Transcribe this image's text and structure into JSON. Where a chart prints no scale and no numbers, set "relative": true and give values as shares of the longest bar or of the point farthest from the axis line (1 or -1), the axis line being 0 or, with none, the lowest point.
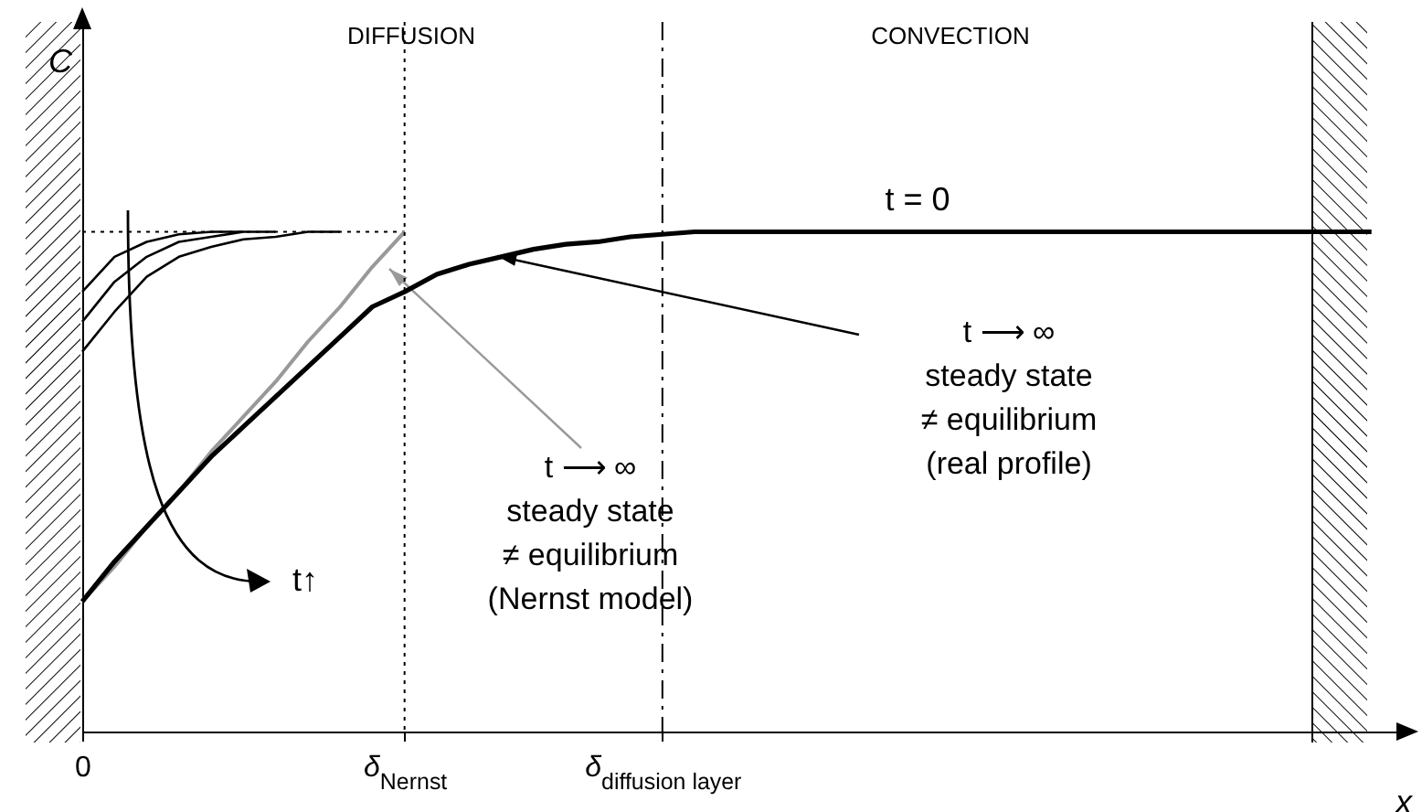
{
  "chart_data": {
    "type": "line",
    "relative": true,
    "xlabel": "x",
    "ylabel": "C",
    "categories": [
      "0",
      null,
      null,
      null,
      null,
      null,
      null,
      null,
      null,
      null,
      "δ$_{Nernst}$",
      null,
      null,
      null,
      null,
      null,
      null,
      null,
      "δ$_{diffusion layer}$",
      null,
      null,
      null,
      null,
      null,
      null,
      null,
      null,
      null,
      null,
      null,
      null,
      null,
      null,
      null,
      null,
      null,
      null,
      null,
      null,
      null,
      null,
      null
    ],
    "series": [
      {
        "color": "#000000",
        "values": [
          0.26,
          0.34,
          0.41,
          0.48,
          0.55,
          0.61,
          0.67,
          0.73,
          0.79,
          0.85,
          0.88,
          0.915,
          0.935,
          0.95,
          0.965,
          0.975,
          0.98,
          0.99,
          0.995,
          1,
          1,
          1,
          1,
          1,
          1,
          1,
          1,
          1,
          1,
          1,
          1,
          1,
          1,
          1,
          1,
          1,
          1,
          1,
          1,
          1,
          1,
          null
        ]
      },
      {
        "color": "#999999",
        "values": [
          0.26,
          0.33,
          0.41,
          0.48,
          0.56,
          0.63,
          0.7,
          0.78,
          0.85,
          0.93,
          1,
          null,
          null,
          null,
          null,
          null,
          null,
          null,
          null,
          null,
          null,
          null,
          null,
          null,
          null,
          null,
          null,
          null,
          null,
          null,
          null,
          null,
          null,
          null,
          null,
          null,
          null,
          null,
          null,
          null,
          null,
          null
        ]
      },
      {
        "color": "#000000",
        "values": [
          0.88,
          0.95,
          0.98,
          0.995,
          1,
          1,
          null,
          null,
          null,
          null,
          null,
          null,
          null,
          null,
          null,
          null,
          null,
          null,
          null,
          null,
          null,
          null,
          null,
          null,
          null,
          null,
          null,
          null,
          null,
          null,
          null,
          null,
          null,
          null,
          null,
          null,
          null,
          null,
          null,
          null,
          null,
          null
        ]
      },
      {
        "color": "#000000",
        "values": [
          0.82,
          0.9,
          0.95,
          0.98,
          0.99,
          1,
          1,
          null,
          null,
          null,
          null,
          null,
          null,
          null,
          null,
          null,
          null,
          null,
          null,
          null,
          null,
          null,
          null,
          null,
          null,
          null,
          null,
          null,
          null,
          null,
          null,
          null,
          null,
          null,
          null,
          null,
          null,
          null,
          null,
          null,
          null,
          null
        ]
      },
      {
        "color": "#000000",
        "values": [
          0.76,
          0.84,
          0.91,
          0.95,
          0.97,
          0.985,
          0.99,
          1,
          1,
          null,
          null,
          null,
          null,
          null,
          null,
          null,
          null,
          null,
          null,
          null,
          null,
          null,
          null,
          null,
          null,
          null,
          null,
          null,
          null,
          null,
          null,
          null,
          null,
          null,
          null,
          null,
          null,
          null,
          null,
          null,
          null,
          null
        ]
      },
      {
        "name": "t = 0",
        "color": "#000000",
        "line_style": "dotted",
        "values": [
          1,
          1,
          1,
          1,
          1,
          1,
          1,
          1,
          1,
          1,
          1,
          null,
          null,
          null,
          null,
          null,
          null,
          null,
          null,
          null,
          null,
          null,
          null,
          null,
          null,
          null,
          null,
          null,
          null,
          null,
          null,
          null,
          null,
          null,
          null,
          null,
          null,
          null,
          null,
          null,
          null,
          null
        ]
      }
    ],
    "ref_lines": [
      {
        "axis": "x",
        "value": "δ$_{Nernst}$",
        "line_style": "dotted"
      },
      {
        "axis": "x",
        "value": "δ$_{diffusion layer}$",
        "line_style": "dashed"
      }
    ],
    "annotations": [
      "DIFFUSION",
      "CONVECTION",
      "t ⟶ ∞\nsteady state\n≠ equilibrium\n(real profile)",
      "t ⟶ ∞\nsteady state\n≠ equilibrium\n(Nernst model)",
      "t↑"
    ],
    "grid": false,
    "marker": "none",
    "line_style": "solid"
  }
}
